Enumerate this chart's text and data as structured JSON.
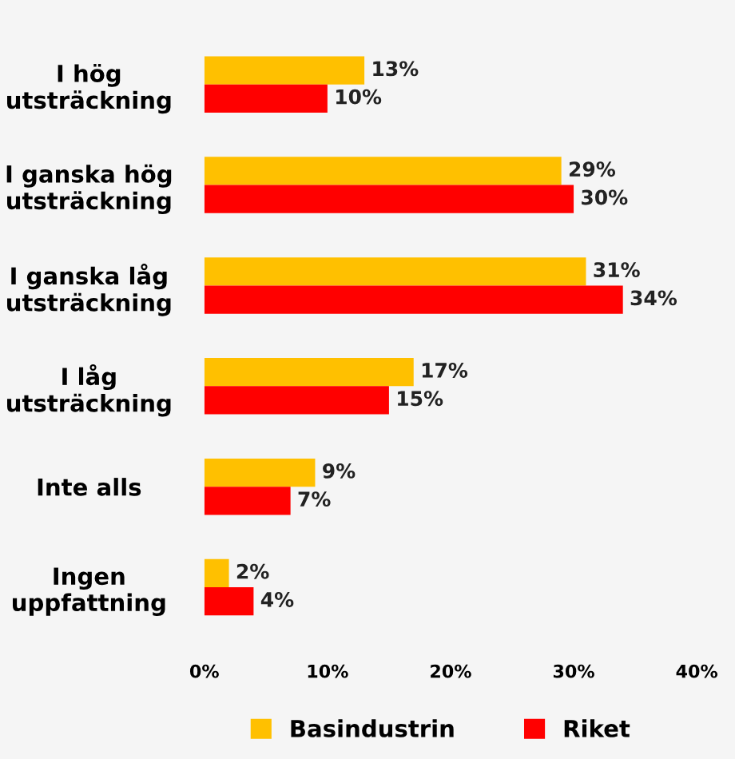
{
  "chart_data": {
    "type": "bar",
    "orientation": "horizontal",
    "categories": [
      "I hög\nutsträckning",
      "I ganska hög\nutsträckning",
      "I ganska låg\nutsträckning",
      "I låg\nutsträckning",
      "Inte alls",
      "Ingen\nuppfattning"
    ],
    "series": [
      {
        "name": "Basindustrin",
        "color": "#ffc000",
        "values": [
          13,
          29,
          31,
          17,
          9,
          2
        ],
        "value_labels": [
          "13%",
          "29%",
          "31%",
          "17%",
          "9%",
          "2%"
        ]
      },
      {
        "name": "Riket",
        "color": "#ff0000",
        "values": [
          10,
          30,
          34,
          15,
          7,
          4
        ],
        "value_labels": [
          "10%",
          "30%",
          "34%",
          "15%",
          "7%",
          "4%"
        ]
      }
    ],
    "xlim": [
      0,
      40
    ],
    "xticks": [
      {
        "value": 0,
        "label": "0%"
      },
      {
        "value": 10,
        "label": "10%"
      },
      {
        "value": 20,
        "label": "20%"
      },
      {
        "value": 30,
        "label": "30%"
      },
      {
        "value": 40,
        "label": "40%"
      }
    ],
    "grid": false,
    "legend": "bottom"
  }
}
